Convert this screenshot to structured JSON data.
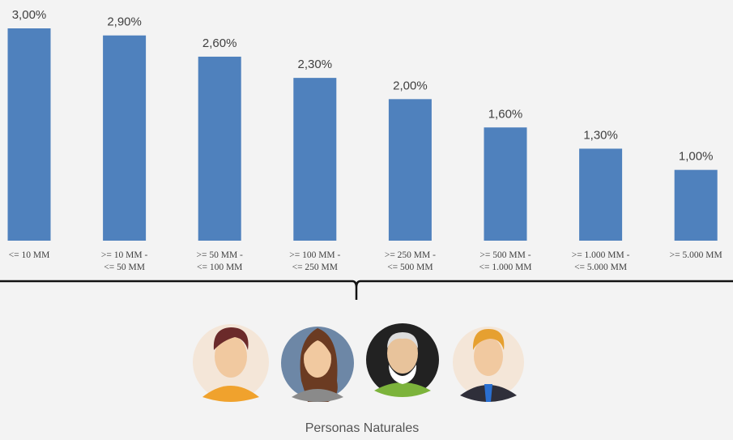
{
  "chart_data": {
    "type": "bar",
    "categories": [
      [
        "<= 10 MM"
      ],
      [
        ">= 10 MM  -",
        "<= 50 MM"
      ],
      [
        ">= 50 MM -",
        "<= 100 MM"
      ],
      [
        ">= 100 MM -",
        "<= 250 MM"
      ],
      [
        ">= 250 MM -",
        "<= 500 MM"
      ],
      [
        ">= 500 MM -",
        "<= 1.000 MM"
      ],
      [
        ">= 1.000 MM -",
        "<= 5.000 MM"
      ],
      [
        ">= 5.000 MM"
      ]
    ],
    "values": [
      3.0,
      2.9,
      2.6,
      2.3,
      2.0,
      1.6,
      1.3,
      1.0
    ],
    "value_labels": [
      "3,00%",
      "2,90%",
      "2,60%",
      "2,30%",
      "2,00%",
      "1,60%",
      "1,30%",
      "1,00%"
    ],
    "color": "#4f81bd"
  },
  "caption": "Personas Naturales"
}
